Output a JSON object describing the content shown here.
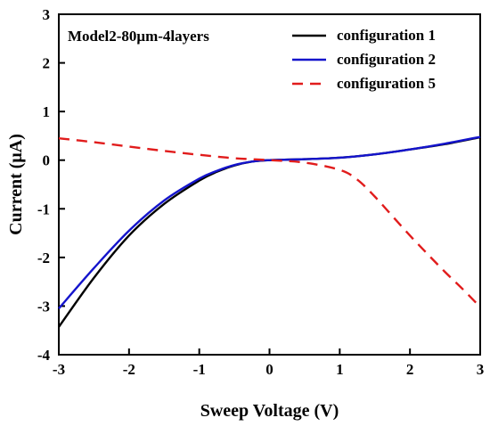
{
  "chart_data": {
    "type": "line",
    "annotation": "Model2-80μm-4layers",
    "xlabel": "Sweep Voltage (V)",
    "ylabel": "Current (μA)",
    "xlim": [
      -3,
      3
    ],
    "ylim": [
      -4,
      3
    ],
    "xticks": [
      -3,
      -2,
      -1,
      0,
      1,
      2,
      3
    ],
    "yticks": [
      -4,
      -3,
      -2,
      -1,
      0,
      1,
      2,
      3
    ],
    "legend_position": "top-right",
    "grid": false,
    "series": [
      {
        "name": "configuration 1",
        "color": "#000000",
        "dash": "solid",
        "x": [
          -3.0,
          -2.5,
          -2.0,
          -1.5,
          -1.0,
          -0.75,
          -0.5,
          -0.25,
          0.0,
          0.5,
          1.0,
          1.5,
          2.0,
          2.5,
          3.0
        ],
        "y": [
          -3.43,
          -2.42,
          -1.55,
          -0.9,
          -0.42,
          -0.24,
          -0.11,
          -0.03,
          0.0,
          0.02,
          0.05,
          0.12,
          0.22,
          0.33,
          0.47
        ]
      },
      {
        "name": "configuration 2",
        "color": "#1414cc",
        "dash": "solid",
        "x": [
          -3.0,
          -2.5,
          -2.0,
          -1.5,
          -1.0,
          -0.75,
          -0.5,
          -0.25,
          0.0,
          0.5,
          1.0,
          1.5,
          2.0,
          2.5,
          3.0
        ],
        "y": [
          -3.05,
          -2.22,
          -1.45,
          -0.83,
          -0.38,
          -0.22,
          -0.1,
          -0.03,
          0.0,
          0.02,
          0.05,
          0.12,
          0.22,
          0.34,
          0.48
        ]
      },
      {
        "name": "configuration 5",
        "color": "#e11c1c",
        "dash": "dashed",
        "x": [
          -3.0,
          -2.5,
          -2.0,
          -1.5,
          -1.0,
          -0.5,
          0.0,
          0.5,
          1.0,
          1.25,
          1.5,
          1.75,
          2.0,
          2.25,
          2.5,
          2.75,
          3.0
        ],
        "y": [
          0.45,
          0.37,
          0.28,
          0.19,
          0.11,
          0.04,
          0.0,
          -0.05,
          -0.2,
          -0.4,
          -0.75,
          -1.15,
          -1.55,
          -1.93,
          -2.3,
          -2.65,
          -3.02
        ]
      }
    ]
  }
}
